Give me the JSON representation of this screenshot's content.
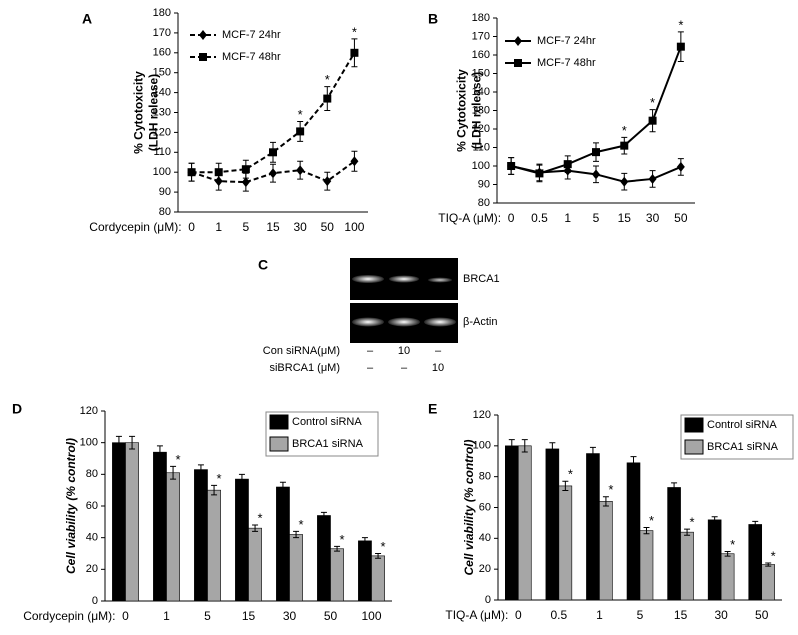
{
  "chart_data": [
    {
      "type": "line",
      "panel_label": "A",
      "y_label": [
        "% Cytotoxicity",
        "(LDH release)"
      ],
      "x_label": "Cordycepin (μM):",
      "categories": [
        "0",
        "1",
        "5",
        "15",
        "30",
        "50",
        "100"
      ],
      "ylim": [
        80,
        180
      ],
      "yticks": [
        80,
        90,
        100,
        110,
        120,
        130,
        140,
        150,
        160,
        170,
        180
      ],
      "series": [
        {
          "name": "MCF-7 24hr",
          "color": "#000000",
          "marker": "diamond",
          "dashed": true,
          "values": [
            100,
            95.5,
            95,
            99.5,
            101,
            95.5,
            105.5
          ],
          "errors": [
            4.5,
            4.5,
            4.5,
            4.5,
            4.5,
            4.5,
            5
          ],
          "significance": [
            null,
            null,
            null,
            null,
            null,
            null,
            null
          ]
        },
        {
          "name": "MCF-7 48hr",
          "color": "#000000",
          "marker": "square",
          "dashed": true,
          "values": [
            100,
            100,
            101.5,
            110,
            120.5,
            137,
            160
          ],
          "errors": [
            4.5,
            4.5,
            4.5,
            5,
            5,
            6,
            7
          ],
          "significance": [
            null,
            null,
            null,
            null,
            "*",
            "*",
            "*"
          ]
        }
      ]
    },
    {
      "type": "line",
      "panel_label": "B",
      "y_label": [
        "% Cytotoxicity",
        "(LDH release)"
      ],
      "x_label": "TIQ-A (μM):",
      "categories": [
        "0",
        "0.5",
        "1",
        "5",
        "15",
        "30",
        "50"
      ],
      "ylim": [
        80,
        180
      ],
      "yticks": [
        80,
        90,
        100,
        110,
        120,
        130,
        140,
        150,
        160,
        170,
        180
      ],
      "series": [
        {
          "name": "MCF-7 24hr",
          "color": "#000000",
          "marker": "diamond",
          "dashed": false,
          "values": [
            100,
            96.5,
            97.5,
            95.5,
            91.5,
            93,
            99.5
          ],
          "errors": [
            4.5,
            4.5,
            4.5,
            4.5,
            4.5,
            4.5,
            4.5
          ],
          "significance": [
            null,
            null,
            null,
            null,
            null,
            null,
            null
          ]
        },
        {
          "name": "MCF-7 48hr",
          "color": "#000000",
          "marker": "square",
          "dashed": false,
          "values": [
            100,
            96,
            101,
            107.5,
            111,
            124.5,
            164.5
          ],
          "errors": [
            4.5,
            4.5,
            4.5,
            5,
            4.5,
            6,
            8
          ],
          "significance": [
            null,
            null,
            null,
            null,
            "*",
            "*",
            "*"
          ]
        }
      ]
    },
    {
      "type": "bar",
      "panel_label": "D",
      "y_label": [
        "Cell viability (% control)"
      ],
      "x_label": "Cordycepin (μM):",
      "categories": [
        "0",
        "1",
        "5",
        "15",
        "30",
        "50",
        "100"
      ],
      "ylim": [
        0,
        120
      ],
      "yticks": [
        0,
        20,
        40,
        60,
        80,
        100,
        120
      ],
      "series": [
        {
          "name": "Control siRNA",
          "color": "#000000",
          "values": [
            100,
            94,
            83,
            77,
            72,
            54,
            38
          ],
          "errors": [
            4,
            4,
            3,
            3,
            3,
            2,
            2
          ],
          "significance": [
            null,
            null,
            null,
            null,
            null,
            null,
            null
          ]
        },
        {
          "name": "BRCA1 siRNA",
          "color": "#a6a6a6",
          "values": [
            100,
            81,
            70,
            46,
            42,
            33,
            28.5
          ],
          "errors": [
            4,
            4,
            3,
            2,
            2,
            1.5,
            1.5
          ],
          "significance": [
            null,
            "*",
            "*",
            "*",
            "*",
            "*",
            "*"
          ]
        }
      ]
    },
    {
      "type": "bar",
      "panel_label": "E",
      "y_label": [
        "Cell viability (% control)"
      ],
      "x_label": "TIQ-A (μM):",
      "categories": [
        "0",
        "0.5",
        "1",
        "5",
        "15",
        "30",
        "50"
      ],
      "ylim": [
        0,
        120
      ],
      "yticks": [
        0,
        20,
        40,
        60,
        80,
        100,
        120
      ],
      "series": [
        {
          "name": "Control siRNA",
          "color": "#000000",
          "values": [
            100,
            98,
            95,
            89,
            73,
            52,
            49
          ],
          "errors": [
            4,
            4,
            4,
            4,
            3,
            2,
            2
          ],
          "significance": [
            null,
            null,
            null,
            null,
            null,
            null,
            null
          ]
        },
        {
          "name": "BRCA1 siRNA",
          "color": "#a6a6a6",
          "values": [
            100,
            74,
            64,
            45,
            44,
            30,
            23
          ],
          "errors": [
            4,
            3,
            3,
            2,
            2,
            1.5,
            1
          ],
          "significance": [
            null,
            "*",
            "*",
            "*",
            "*",
            "*",
            "*"
          ]
        }
      ]
    }
  ],
  "blot": {
    "panel_label": "C",
    "bands": [
      "BRCA1",
      "β-Actin"
    ],
    "rows": [
      {
        "label": "Con siRNA(μM)",
        "values": [
          "–",
          "10",
          "–"
        ]
      },
      {
        "label": "siBRCA1 (μM)",
        "values": [
          "–",
          "–",
          "10"
        ]
      }
    ]
  }
}
